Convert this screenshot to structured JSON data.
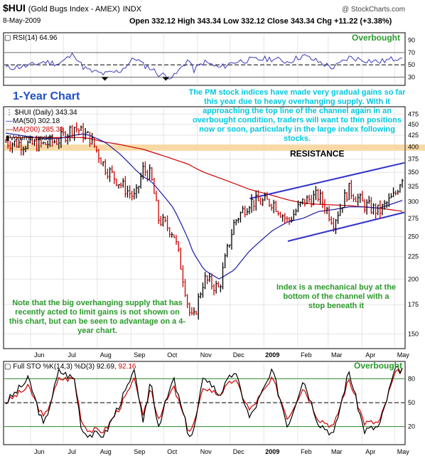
{
  "header": {
    "symbol": "$HUI",
    "name": "(Gold Bugs Index - AMEX)",
    "exchange": "INDX",
    "site": "@ StockCharts.com",
    "date": "8-May-2009",
    "ohlc": "Open 332.12  High 343.34  Low 332.12  Close 343.34  Chg +11.22 (+3.38%)"
  },
  "title": "1-Year Chart",
  "notes": {
    "top": "The PM stock indices have made very gradual gains so far this year due to heavy overhanging supply. With it approaching the top line of the channel again in an overbought condition, traders will want to thin positions now or soon, particularly in the large index following stocks.",
    "resistance": "RESISTANCE",
    "mechanical": "Index is a mechanical buy at the bottom of the channel with a stop beneath it",
    "supply": "Note that the big overhanging supply that has recently acted to limit gains is not shown on this chart, but can be seen to advantage on a 4-year chart."
  },
  "rsi_panel": {
    "label": "RSI(14) 64.96",
    "overbought": "Overbought",
    "levels": [
      "90",
      "70",
      "50",
      "30"
    ]
  },
  "price_panel": {
    "legend": [
      "$HUI (Daily) 343.34",
      "MA(50) 302.18",
      "MA(200) 285.38",
      "Volume undef"
    ],
    "y_ticks": [
      "475",
      "450",
      "425",
      "400",
      "375",
      "350",
      "325",
      "300",
      "275",
      "250",
      "225",
      "200",
      "175",
      "150"
    ]
  },
  "sto_panel": {
    "label_main": "Full STO %K(14,3) %D(3) 92.69,",
    "label_d": "92.16",
    "overbought": "Overbought",
    "levels": [
      "80",
      "50",
      "20"
    ]
  },
  "x_ticks": [
    "Jun",
    "Jul",
    "Aug",
    "Sep",
    "Oct",
    "Nov",
    "Dec",
    "2009",
    "Feb",
    "Mar",
    "Apr",
    "May"
  ],
  "colors": {
    "up": "#000000",
    "down": "#cc0000",
    "ma50": "#1a1aa8",
    "ma200": "#cc0000",
    "channel": "#3333cc",
    "resistance": "#f8d9a6",
    "note_cyan": "#00c8e0",
    "note_green": "#2a9a2a",
    "title_blue": "#1f4fc8"
  },
  "chart_data": {
    "type": "ohlc",
    "x": [
      "2008-05-09",
      "2008-05-30",
      "2008-06-13",
      "2008-06-27",
      "2008-07-11",
      "2008-07-18",
      "2008-07-25",
      "2008-08-08",
      "2008-08-22",
      "2008-09-05",
      "2008-09-12",
      "2008-09-19",
      "2008-09-26",
      "2008-10-10",
      "2008-10-24",
      "2008-10-28",
      "2008-11-07",
      "2008-11-21",
      "2008-12-05",
      "2008-12-19",
      "2009-01-09",
      "2009-01-23",
      "2009-02-06",
      "2009-02-20",
      "2009-03-06",
      "2009-03-20",
      "2009-04-03",
      "2009-04-17",
      "2009-05-01",
      "2009-05-08"
    ],
    "close": [
      410,
      405,
      405,
      415,
      445,
      430,
      420,
      360,
      330,
      305,
      355,
      345,
      275,
      255,
      170,
      160,
      200,
      190,
      270,
      300,
      300,
      270,
      300,
      310,
      270,
      320,
      295,
      285,
      310,
      343.34
    ],
    "ma50_close": [
      430,
      422,
      418,
      418,
      425,
      428,
      425,
      410,
      385,
      355,
      342,
      335,
      320,
      290,
      245,
      230,
      210,
      200,
      210,
      232,
      258,
      270,
      275,
      285,
      288,
      292,
      292,
      290,
      298,
      302.18
    ],
    "ma200_close": [
      420,
      420,
      420,
      420,
      420,
      420,
      418,
      410,
      405,
      398,
      395,
      390,
      385,
      375,
      365,
      360,
      350,
      340,
      330,
      320,
      310,
      303,
      298,
      296,
      295,
      294,
      292,
      290,
      287,
      285.38
    ],
    "rsi": [
      45,
      48,
      55,
      52,
      68,
      48,
      40,
      35,
      40,
      62,
      50,
      45,
      35,
      30,
      60,
      40,
      55,
      45,
      55,
      58,
      60,
      55,
      65,
      55,
      45,
      62,
      58,
      55,
      60,
      64.96
    ],
    "sto_k": [
      50,
      80,
      20,
      90,
      80,
      15,
      10,
      10,
      50,
      90,
      20,
      80,
      20,
      80,
      10,
      10,
      85,
      60,
      90,
      30,
      90,
      20,
      80,
      25,
      10,
      90,
      15,
      20,
      90,
      92.69
    ],
    "sto_d": [
      50,
      70,
      30,
      80,
      80,
      25,
      15,
      15,
      45,
      80,
      30,
      70,
      30,
      70,
      15,
      20,
      70,
      60,
      80,
      40,
      80,
      30,
      70,
      30,
      20,
      80,
      25,
      25,
      85,
      92.16
    ],
    "ylim": [
      150,
      475
    ],
    "rsi_levels": [
      30,
      50,
      70
    ],
    "sto_levels": [
      20,
      50,
      80
    ],
    "channel": {
      "upper": [
        [
          "2008-12-19",
          305
        ],
        [
          "2009-05-08",
          367
        ]
      ],
      "lower": [
        [
          "2009-01-23",
          244
        ],
        [
          "2009-05-08",
          283
        ]
      ]
    },
    "resistance_band": [
      392,
      405
    ]
  }
}
